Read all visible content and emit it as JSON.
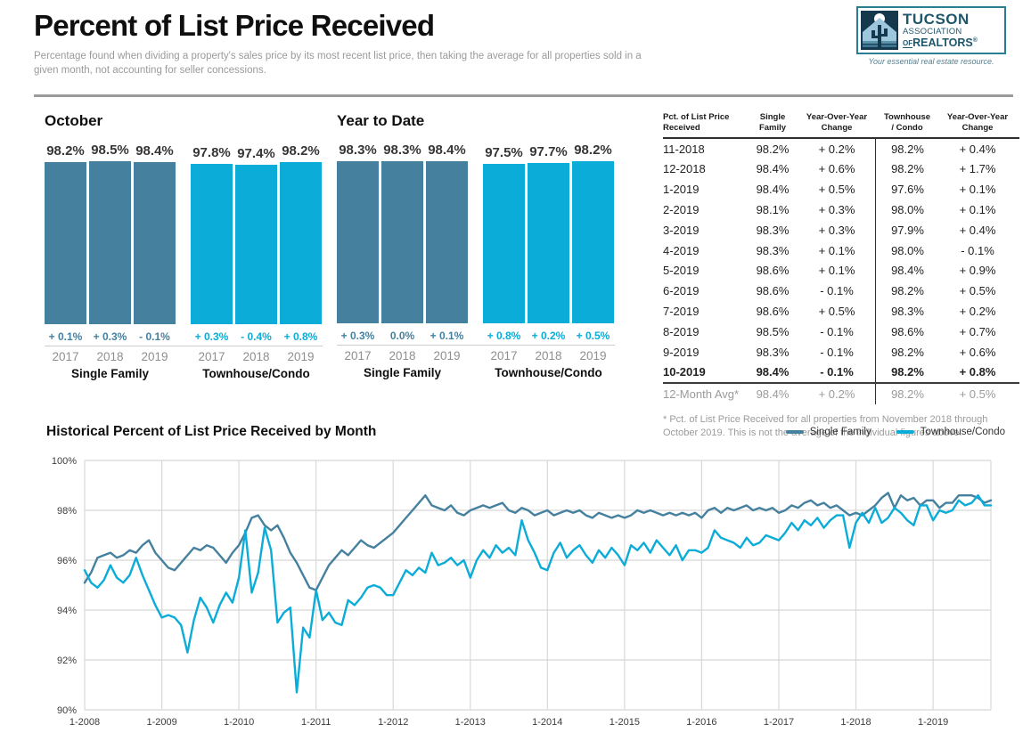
{
  "header": {
    "title": "Percent of List Price Received",
    "subtitle": "Percentage found when dividing a property's sales price by its most recent list price, then taking the average for all properties sold in a given month, not accounting for seller concessions.",
    "logo": {
      "line1": "TUCSON",
      "line2": "ASSOCIATION",
      "line3_of": "OF",
      "line3": "REALTORS",
      "reg": "®",
      "tagline": "Your essential real estate resource."
    }
  },
  "colors": {
    "single_family": "#45819f",
    "townhouse_condo": "#0cacd8",
    "grid": "#d8d8d8",
    "year_label": "#8f8f8f"
  },
  "chart_data": [
    {
      "type": "bar",
      "title": "October",
      "ylabel": "Percent of List Price Received",
      "groups": [
        {
          "name": "Single Family",
          "color_key": "single_family",
          "categories": [
            "2017",
            "2018",
            "2019"
          ],
          "values": [
            98.2,
            98.5,
            98.4
          ],
          "changes": [
            "+ 0.1%",
            "+ 0.3%",
            "- 0.1%"
          ]
        },
        {
          "name": "Townhouse/Condo",
          "color_key": "townhouse_condo",
          "categories": [
            "2017",
            "2018",
            "2019"
          ],
          "values": [
            97.8,
            97.4,
            98.2
          ],
          "changes": [
            "+ 0.3%",
            "- 0.4%",
            "+ 0.8%"
          ]
        }
      ]
    },
    {
      "type": "bar",
      "title": "Year to Date",
      "ylabel": "Percent of List Price Received",
      "groups": [
        {
          "name": "Single Family",
          "color_key": "single_family",
          "categories": [
            "2017",
            "2018",
            "2019"
          ],
          "values": [
            98.3,
            98.3,
            98.4
          ],
          "changes": [
            "+ 0.3%",
            "0.0%",
            "+ 0.1%"
          ]
        },
        {
          "name": "Townhouse/Condo",
          "color_key": "townhouse_condo",
          "categories": [
            "2017",
            "2018",
            "2019"
          ],
          "values": [
            97.5,
            97.7,
            98.2
          ],
          "changes": [
            "+ 0.8%",
            "+ 0.2%",
            "+ 0.5%"
          ]
        }
      ]
    },
    {
      "type": "line",
      "title": "Historical Percent of List Price Received by Month",
      "x_start": "1-2008",
      "x_end": "10-2019",
      "x_tick_labels": [
        "1-2008",
        "1-2009",
        "1-2010",
        "1-2011",
        "1-2012",
        "1-2013",
        "1-2014",
        "1-2015",
        "1-2016",
        "1-2017",
        "1-2018",
        "1-2019"
      ],
      "tick_every": 12,
      "ylim": [
        90,
        100
      ],
      "yticks": [
        100,
        98,
        96,
        94,
        92,
        90
      ],
      "grid": true,
      "legend_position": "top-right",
      "series": [
        {
          "name": "Single Family",
          "color_key": "single_family",
          "values": [
            95.1,
            95.5,
            96.1,
            96.2,
            96.3,
            96.1,
            96.2,
            96.4,
            96.3,
            96.6,
            96.8,
            96.3,
            96.0,
            95.7,
            95.6,
            95.9,
            96.2,
            96.5,
            96.4,
            96.6,
            96.5,
            96.2,
            95.9,
            96.3,
            96.6,
            97.1,
            97.7,
            97.8,
            97.4,
            97.2,
            97.4,
            96.9,
            96.3,
            95.9,
            95.4,
            94.9,
            94.8,
            95.3,
            95.8,
            96.1,
            96.4,
            96.2,
            96.5,
            96.8,
            96.6,
            96.5,
            96.7,
            96.9,
            97.1,
            97.4,
            97.7,
            98.0,
            98.3,
            98.6,
            98.2,
            98.1,
            98.0,
            98.2,
            97.9,
            97.8,
            98.0,
            98.1,
            98.2,
            98.1,
            98.2,
            98.3,
            98.0,
            97.9,
            98.1,
            98.0,
            97.8,
            97.9,
            98.0,
            97.8,
            97.9,
            98.0,
            97.9,
            98.0,
            97.8,
            97.7,
            97.9,
            97.8,
            97.7,
            97.8,
            97.7,
            97.8,
            98.0,
            97.9,
            98.0,
            97.9,
            97.8,
            97.9,
            97.8,
            97.9,
            97.8,
            97.9,
            97.7,
            98.0,
            98.1,
            97.9,
            98.1,
            98.0,
            98.1,
            98.2,
            98.0,
            98.1,
            98.0,
            98.1,
            97.9,
            98.0,
            98.2,
            98.1,
            98.3,
            98.4,
            98.2,
            98.3,
            98.1,
            98.2,
            98.0,
            97.8,
            97.9,
            97.8,
            98.0,
            98.2,
            98.5,
            98.7,
            98.1,
            98.6,
            98.4,
            98.5,
            98.2,
            98.4,
            98.4,
            98.1,
            98.3,
            98.3,
            98.6,
            98.6,
            98.6,
            98.5,
            98.3,
            98.4
          ]
        },
        {
          "name": "Townhouse/Condo",
          "color_key": "townhouse_condo",
          "values": [
            95.6,
            95.1,
            94.9,
            95.2,
            95.8,
            95.3,
            95.1,
            95.4,
            96.1,
            95.4,
            94.8,
            94.2,
            93.7,
            93.8,
            93.7,
            93.4,
            92.3,
            93.6,
            94.5,
            94.1,
            93.5,
            94.2,
            94.7,
            94.3,
            95.3,
            97.2,
            94.7,
            95.5,
            97.3,
            96.4,
            93.5,
            93.9,
            94.1,
            90.7,
            93.3,
            92.9,
            94.8,
            93.6,
            93.9,
            93.5,
            93.4,
            94.4,
            94.2,
            94.5,
            94.9,
            95.0,
            94.9,
            94.6,
            94.6,
            95.1,
            95.6,
            95.4,
            95.7,
            95.5,
            96.3,
            95.8,
            95.9,
            96.1,
            95.8,
            96.0,
            95.3,
            96.0,
            96.4,
            96.1,
            96.6,
            96.3,
            96.5,
            96.2,
            97.6,
            96.8,
            96.3,
            95.7,
            95.6,
            96.3,
            96.7,
            96.1,
            96.4,
            96.6,
            96.2,
            95.9,
            96.4,
            96.1,
            96.5,
            96.2,
            95.8,
            96.6,
            96.4,
            96.7,
            96.3,
            96.8,
            96.5,
            96.2,
            96.6,
            96.0,
            96.4,
            96.4,
            96.3,
            96.5,
            97.2,
            96.9,
            96.8,
            96.7,
            96.5,
            96.9,
            96.6,
            96.7,
            97.0,
            96.9,
            96.8,
            97.1,
            97.5,
            97.2,
            97.6,
            97.4,
            97.7,
            97.3,
            97.6,
            97.8,
            97.8,
            96.5,
            97.5,
            97.9,
            97.5,
            98.1,
            97.5,
            97.7,
            98.1,
            97.9,
            97.6,
            97.4,
            98.2,
            98.2,
            97.6,
            98.0,
            97.9,
            98.0,
            98.4,
            98.2,
            98.3,
            98.6,
            98.2,
            98.2
          ]
        }
      ]
    }
  ],
  "table": {
    "headers": [
      [
        "Pct. of List Price",
        "Received"
      ],
      [
        "Single",
        "Family"
      ],
      [
        "Year-Over-Year",
        "Change"
      ],
      [
        "Townhouse",
        "/ Condo"
      ],
      [
        "Year-Over-Year",
        "Change"
      ]
    ],
    "rows": [
      {
        "style": "normal",
        "cells": [
          "11-2018",
          "98.2%",
          "+ 0.2%",
          "98.2%",
          "+ 0.4%"
        ]
      },
      {
        "style": "normal",
        "cells": [
          "12-2018",
          "98.4%",
          "+ 0.6%",
          "98.2%",
          "+ 1.7%"
        ]
      },
      {
        "style": "normal",
        "cells": [
          "1-2019",
          "98.4%",
          "+ 0.5%",
          "97.6%",
          "+ 0.1%"
        ]
      },
      {
        "style": "normal",
        "cells": [
          "2-2019",
          "98.1%",
          "+ 0.3%",
          "98.0%",
          "+ 0.1%"
        ]
      },
      {
        "style": "normal",
        "cells": [
          "3-2019",
          "98.3%",
          "+ 0.3%",
          "97.9%",
          "+ 0.4%"
        ]
      },
      {
        "style": "normal",
        "cells": [
          "4-2019",
          "98.3%",
          "+ 0.1%",
          "98.0%",
          "- 0.1%"
        ]
      },
      {
        "style": "normal",
        "cells": [
          "5-2019",
          "98.6%",
          "+ 0.1%",
          "98.4%",
          "+ 0.9%"
        ]
      },
      {
        "style": "normal",
        "cells": [
          "6-2019",
          "98.6%",
          "- 0.1%",
          "98.2%",
          "+ 0.5%"
        ]
      },
      {
        "style": "normal",
        "cells": [
          "7-2019",
          "98.6%",
          "+ 0.5%",
          "98.3%",
          "+ 0.2%"
        ]
      },
      {
        "style": "normal",
        "cells": [
          "8-2019",
          "98.5%",
          "- 0.1%",
          "98.6%",
          "+ 0.7%"
        ]
      },
      {
        "style": "normal",
        "cells": [
          "9-2019",
          "98.3%",
          "- 0.1%",
          "98.2%",
          "+ 0.6%"
        ]
      },
      {
        "style": "bold",
        "cells": [
          "10-2019",
          "98.4%",
          "- 0.1%",
          "98.2%",
          "+ 0.8%"
        ]
      },
      {
        "style": "avg",
        "cells": [
          "12-Month Avg*",
          "98.4%",
          "+ 0.2%",
          "98.2%",
          "+ 0.5%"
        ]
      }
    ],
    "footnote": "* Pct. of List Price Received for all properties from November 2018 through October 2019. This is not the average of the individual figures above."
  }
}
